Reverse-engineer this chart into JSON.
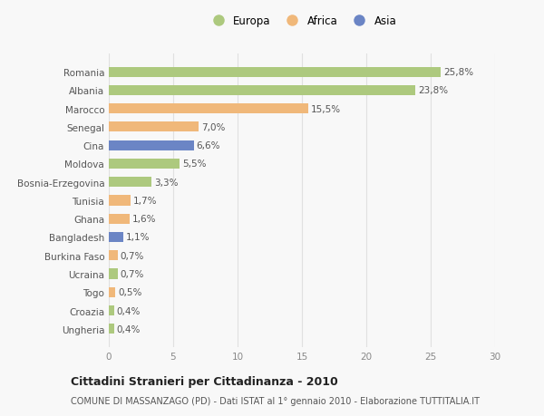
{
  "countries": [
    "Romania",
    "Albania",
    "Marocco",
    "Senegal",
    "Cina",
    "Moldova",
    "Bosnia-Erzegovina",
    "Tunisia",
    "Ghana",
    "Bangladesh",
    "Burkina Faso",
    "Ucraina",
    "Togo",
    "Croazia",
    "Ungheria"
  ],
  "values": [
    25.8,
    23.8,
    15.5,
    7.0,
    6.6,
    5.5,
    3.3,
    1.7,
    1.6,
    1.1,
    0.7,
    0.7,
    0.5,
    0.4,
    0.4
  ],
  "labels": [
    "25,8%",
    "23,8%",
    "15,5%",
    "7,0%",
    "6,6%",
    "5,5%",
    "3,3%",
    "1,7%",
    "1,6%",
    "1,1%",
    "0,7%",
    "0,7%",
    "0,5%",
    "0,4%",
    "0,4%"
  ],
  "continents": [
    "Europa",
    "Europa",
    "Africa",
    "Africa",
    "Asia",
    "Europa",
    "Europa",
    "Africa",
    "Africa",
    "Asia",
    "Africa",
    "Europa",
    "Africa",
    "Europa",
    "Europa"
  ],
  "colors": {
    "Europa": "#adc97e",
    "Africa": "#f0b87a",
    "Asia": "#6b85c5"
  },
  "xlim": [
    0,
    30
  ],
  "xticks": [
    0,
    5,
    10,
    15,
    20,
    25,
    30
  ],
  "title": "Cittadini Stranieri per Cittadinanza - 2010",
  "subtitle": "COMUNE DI MASSANZAGO (PD) - Dati ISTAT al 1° gennaio 2010 - Elaborazione TUTTITALIA.IT",
  "bg_color": "#f8f8f8",
  "grid_color": "#e0e0e0",
  "bar_height": 0.55,
  "label_fontsize": 7.5,
  "ytick_fontsize": 7.5,
  "xtick_fontsize": 7.5,
  "legend_fontsize": 8.5,
  "title_fontsize": 9,
  "subtitle_fontsize": 7
}
